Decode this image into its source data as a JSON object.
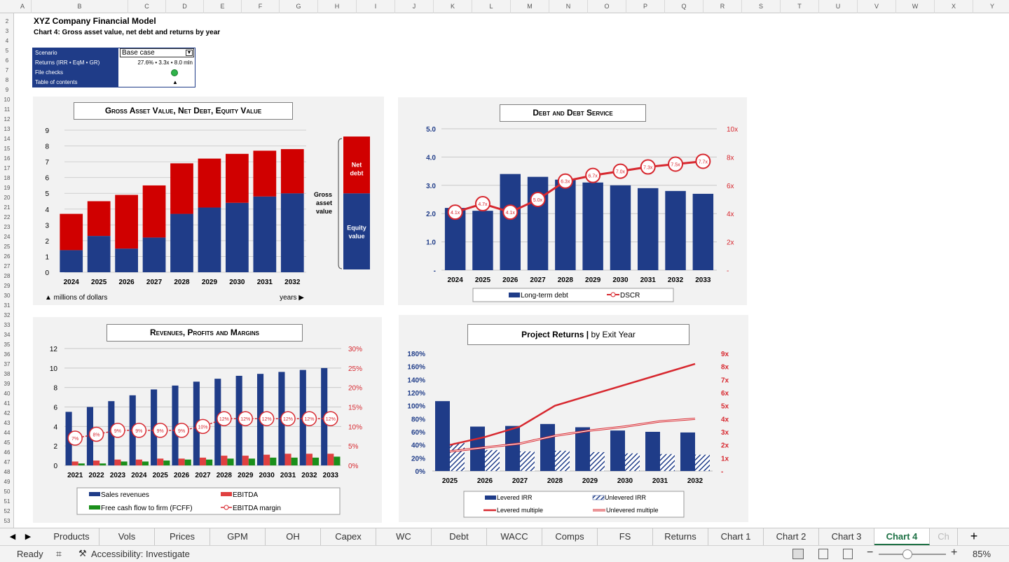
{
  "columns": [
    "A",
    "B",
    "C",
    "D",
    "E",
    "F",
    "G",
    "H",
    "I",
    "J",
    "K",
    "L",
    "M",
    "N",
    "O",
    "P",
    "Q",
    "R",
    "S",
    "T",
    "U",
    "V",
    "W",
    "X",
    "Y"
  ],
  "rows": [
    "2",
    "3",
    "4",
    "5",
    "6",
    "7",
    "8",
    "9",
    "10",
    "11",
    "12",
    "13",
    "14",
    "15",
    "16",
    "17",
    "18",
    "19",
    "20",
    "21",
    "22",
    "23",
    "24",
    "25",
    "26",
    "27",
    "28",
    "29",
    "30",
    "31",
    "32",
    "33",
    "34",
    "35",
    "36",
    "37",
    "38",
    "39",
    "40",
    "41",
    "42",
    "43",
    "44",
    "45",
    "46",
    "47",
    "48",
    "49",
    "50",
    "51",
    "52",
    "53"
  ],
  "title": "XYZ Company Financial Model",
  "subtitle": "Chart 4: Gross asset value, net debt and returns by year",
  "info": {
    "scenario_label": "Scenario",
    "scenario_value": "Base case",
    "returns_label": "Returns (IRR • EqM • GR)",
    "returns_value": "27.6% • 3.3x • 8.0 mln",
    "filechecks_label": "File checks",
    "toc_label": "Table of contents",
    "toc_arrow": "▲",
    "check_color": "#2fb34a"
  },
  "colors": {
    "navy": "#1f3c88",
    "red": "#d00000",
    "green": "#1a8f1a",
    "line_red": "#d7282f"
  },
  "chart_data": [
    {
      "type": "bar",
      "title": "Gross Asset Value, Net Debt, Equity Value",
      "categories": [
        "2024",
        "2025",
        "2026",
        "2027",
        "2028",
        "2029",
        "2030",
        "2031",
        "2032"
      ],
      "series": [
        {
          "name": "Equity value",
          "values": [
            1.4,
            2.3,
            1.5,
            2.2,
            3.7,
            4.1,
            4.4,
            4.8,
            5.0
          ]
        },
        {
          "name": "Net debt",
          "values": [
            2.3,
            2.2,
            3.4,
            3.3,
            3.2,
            3.1,
            3.1,
            2.9,
            2.8
          ]
        }
      ],
      "ylim": [
        0,
        9
      ],
      "yticks": [
        "0",
        "1",
        "2",
        "3",
        "4",
        "5",
        "6",
        "7",
        "8",
        "9"
      ],
      "xlabel": "years ▶",
      "ylabel": "▲ millions of dollars",
      "annot_gross": "Gross asset value",
      "annot_net": "Net debt",
      "annot_equity": "Equity value"
    },
    {
      "type": "bar",
      "title": "Debt and Debt Service",
      "categories": [
        "2024",
        "2025",
        "2026",
        "2027",
        "2028",
        "2029",
        "2030",
        "2031",
        "2032",
        "2033"
      ],
      "series": [
        {
          "name": "Long-term debt",
          "values": [
            2.2,
            2.1,
            3.4,
            3.3,
            3.2,
            3.1,
            3.0,
            2.9,
            2.8,
            2.7
          ]
        },
        {
          "name": "DSCR",
          "values": [
            4.1,
            4.7,
            4.1,
            5.0,
            6.3,
            6.7,
            7.0,
            7.3,
            7.5,
            7.7
          ]
        }
      ],
      "labels": [
        "4.1x",
        "4.7x",
        "4.1x",
        "5.0x",
        "6.3x",
        "6.7x",
        "7.0x",
        "7.3x",
        "7.5x",
        "7.7x"
      ],
      "ylim": [
        0,
        5
      ],
      "y2lim": [
        0,
        10
      ],
      "yticks": [
        "-",
        "1.0",
        "2.0",
        "3.0",
        "4.0",
        "5.0"
      ],
      "y2ticks": [
        "-",
        "2x",
        "4x",
        "6x",
        "8x",
        "10x"
      ]
    },
    {
      "type": "bar",
      "title": "Revenues, Profits and Margins",
      "categories": [
        "2021",
        "2022",
        "2023",
        "2024",
        "2025",
        "2026",
        "2027",
        "2028",
        "2029",
        "2030",
        "2031",
        "2032",
        "2033"
      ],
      "series": [
        {
          "name": "Sales revenues",
          "values": [
            5.5,
            6.0,
            6.6,
            7.2,
            7.8,
            8.2,
            8.6,
            8.9,
            9.2,
            9.4,
            9.6,
            9.8,
            10.0
          ]
        },
        {
          "name": "EBITDA",
          "values": [
            0.4,
            0.5,
            0.6,
            0.6,
            0.7,
            0.7,
            0.8,
            1.0,
            1.0,
            1.1,
            1.2,
            1.2,
            1.2
          ]
        },
        {
          "name": "Free cash flow to firm (FCFF)",
          "values": [
            0.2,
            0.2,
            0.4,
            0.4,
            0.5,
            0.6,
            0.6,
            0.7,
            0.7,
            0.8,
            0.8,
            0.8,
            0.9
          ]
        },
        {
          "name": "EBITDA margin",
          "values": [
            7,
            8,
            9,
            9,
            9,
            9,
            10,
            12,
            12,
            12,
            12,
            12,
            12
          ]
        }
      ],
      "labels": [
        "7%",
        "8%",
        "9%",
        "9%",
        "9%",
        "9%",
        "10%",
        "12%",
        "12%",
        "12%",
        "12%",
        "12%",
        "12%"
      ],
      "ylim": [
        0,
        12
      ],
      "y2lim": [
        0,
        30
      ],
      "yticks": [
        "0",
        "2",
        "4",
        "6",
        "8",
        "10",
        "12"
      ],
      "y2ticks": [
        "0%",
        "5%",
        "10%",
        "15%",
        "20%",
        "25%",
        "30%"
      ]
    },
    {
      "type": "bar",
      "title_bold": "Project Returns |",
      "title_rest": " by Exit Year",
      "categories": [
        "2025",
        "2026",
        "2027",
        "2028",
        "2029",
        "2030",
        "2031",
        "2032"
      ],
      "series": [
        {
          "name": "Levered IRR",
          "values": [
            107,
            68,
            69,
            72,
            67,
            62,
            60,
            59
          ]
        },
        {
          "name": "Unlevered IRR",
          "values": [
            43,
            32,
            30,
            31,
            29,
            27,
            26,
            25
          ]
        },
        {
          "name": "Levered multiple",
          "values": [
            2.0,
            2.6,
            3.4,
            5.0,
            5.8,
            6.6,
            7.4,
            8.2
          ]
        },
        {
          "name": "Unlevered multiple",
          "values": [
            1.5,
            1.8,
            2.1,
            2.7,
            3.1,
            3.4,
            3.8,
            4.0
          ]
        }
      ],
      "ylim": [
        0,
        180
      ],
      "y2lim": [
        0,
        9
      ],
      "yticks": [
        "0%",
        "20%",
        "40%",
        "60%",
        "80%",
        "100%",
        "120%",
        "140%",
        "160%",
        "180%"
      ],
      "y2ticks": [
        "-",
        "1x",
        "2x",
        "3x",
        "4x",
        "5x",
        "6x",
        "7x",
        "8x",
        "9x"
      ]
    }
  ],
  "tabs": [
    "Products",
    "Vols",
    "Prices",
    "GPM",
    "OH",
    "Capex",
    "WC",
    "Debt",
    "WACC",
    "Comps",
    "FS",
    "Returns",
    "Chart 1",
    "Chart 2",
    "Chart 3",
    "Chart 4",
    "Ch"
  ],
  "active_tab": "Chart 4",
  "status": {
    "ready": "Ready",
    "accessibility": "Accessibility: Investigate",
    "zoom": "85%"
  }
}
